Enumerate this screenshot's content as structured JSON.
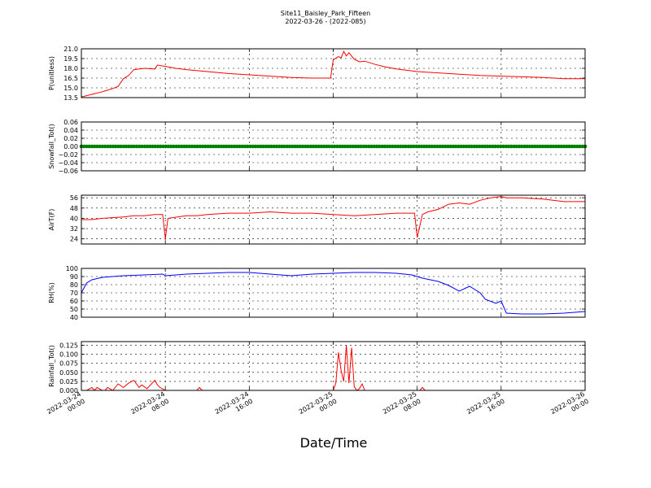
{
  "figure": {
    "title_line1": "Site11_Baisley_Park_Fifteen",
    "title_line2": "2022-03-26 - (2022-085)",
    "xlabel": "Date/Time"
  },
  "x_axis": {
    "range": [
      "2022-03-24 00:00",
      "2022-03-26 00:00"
    ],
    "ticks": [
      {
        "value": "2022-03-24 00:00",
        "line1": "2022-03-24",
        "line2": "00:00"
      },
      {
        "value": "2022-03-24 08:00",
        "line1": "2022-03-24",
        "line2": "08:00"
      },
      {
        "value": "2022-03-24 16:00",
        "line1": "2022-03-24",
        "line2": "16:00"
      },
      {
        "value": "2022-03-25 00:00",
        "line1": "2022-03-25",
        "line2": "00:00"
      },
      {
        "value": "2022-03-25 08:00",
        "line1": "2022-03-25",
        "line2": "08:00"
      },
      {
        "value": "2022-03-25 16:00",
        "line1": "2022-03-25",
        "line2": "16:00"
      },
      {
        "value": "2022-03-26 00:00",
        "line1": "2022-03-26",
        "line2": "00:00"
      }
    ]
  },
  "chart_data": [
    {
      "type": "line",
      "ylabel": "P(unitless)",
      "ylim": [
        13.5,
        21.0
      ],
      "yticks": [
        "13.5",
        "15.0",
        "16.5",
        "18.0",
        "19.5",
        "21.0"
      ],
      "grid": true,
      "color": "#ff0000",
      "x": [
        "2022-03-24 00:00",
        "2022-03-24 01:00",
        "2022-03-24 02:00",
        "2022-03-24 03:00",
        "2022-03-24 03:30",
        "2022-03-24 04:00",
        "2022-03-24 04:30",
        "2022-03-24 05:00",
        "2022-03-24 06:00",
        "2022-03-24 07:00",
        "2022-03-24 07:15",
        "2022-03-24 08:00",
        "2022-03-24 09:00",
        "2022-03-24 10:00",
        "2022-03-24 12:00",
        "2022-03-24 14:00",
        "2022-03-24 16:00",
        "2022-03-24 18:00",
        "2022-03-24 20:00",
        "2022-03-24 22:00",
        "2022-03-24 23:45",
        "2022-03-25 00:00",
        "2022-03-25 00:30",
        "2022-03-25 00:45",
        "2022-03-25 01:00",
        "2022-03-25 01:15",
        "2022-03-25 01:30",
        "2022-03-25 02:00",
        "2022-03-25 02:30",
        "2022-03-25 03:00",
        "2022-03-25 04:00",
        "2022-03-25 05:00",
        "2022-03-25 06:00",
        "2022-03-25 08:00",
        "2022-03-25 10:00",
        "2022-03-25 12:00",
        "2022-03-25 14:00",
        "2022-03-25 16:00",
        "2022-03-25 18:00",
        "2022-03-25 20:00",
        "2022-03-25 22:00",
        "2022-03-26 00:00"
      ],
      "y": [
        13.6,
        14.0,
        14.4,
        14.9,
        15.2,
        16.4,
        16.9,
        17.8,
        18.0,
        17.9,
        18.5,
        18.3,
        18.0,
        17.8,
        17.5,
        17.2,
        17.0,
        16.8,
        16.6,
        16.5,
        16.5,
        19.3,
        19.8,
        19.6,
        20.6,
        19.9,
        20.4,
        19.4,
        19.0,
        19.1,
        18.6,
        18.2,
        17.9,
        17.5,
        17.3,
        17.1,
        16.9,
        16.8,
        16.7,
        16.6,
        16.4,
        16.4
      ]
    },
    {
      "type": "scatter",
      "ylabel": "Snowfall_Tot()",
      "ylim": [
        -0.06,
        0.06
      ],
      "yticks": [
        "−0.06",
        "−0.04",
        "−0.02",
        "0.00",
        "0.02",
        "0.04",
        "0.06"
      ],
      "grid": true,
      "color": "#008000",
      "constant_value": 0.0,
      "point_count": 192
    },
    {
      "type": "line",
      "ylabel": "AirT(F)",
      "ylim": [
        20,
        58
      ],
      "yticks": [
        "24",
        "32",
        "40",
        "48",
        "56"
      ],
      "grid": true,
      "color": "#ff0000",
      "x": [
        "2022-03-24 00:00",
        "2022-03-24 01:00",
        "2022-03-24 02:00",
        "2022-03-24 04:00",
        "2022-03-24 05:00",
        "2022-03-24 06:00",
        "2022-03-24 07:00",
        "2022-03-24 07:45",
        "2022-03-24 08:00",
        "2022-03-24 08:15",
        "2022-03-24 10:00",
        "2022-03-24 11:00",
        "2022-03-24 12:00",
        "2022-03-24 14:00",
        "2022-03-24 16:00",
        "2022-03-24 18:00",
        "2022-03-24 20:00",
        "2022-03-24 22:00",
        "2022-03-25 00:00",
        "2022-03-25 02:00",
        "2022-03-25 04:00",
        "2022-03-25 06:00",
        "2022-03-25 07:45",
        "2022-03-25 08:00",
        "2022-03-25 08:30",
        "2022-03-25 09:00",
        "2022-03-25 10:00",
        "2022-03-25 11:00",
        "2022-03-25 12:00",
        "2022-03-25 13:00",
        "2022-03-25 14:00",
        "2022-03-25 15:00",
        "2022-03-25 16:00",
        "2022-03-25 16:30",
        "2022-03-25 18:00",
        "2022-03-25 20:00",
        "2022-03-25 22:00",
        "2022-03-26 00:00"
      ],
      "y": [
        39,
        39,
        40,
        41,
        42,
        42,
        43,
        43,
        24,
        40,
        42,
        42,
        43,
        44,
        44,
        45,
        44,
        44,
        43,
        42,
        43,
        44,
        44,
        25,
        43,
        45,
        47,
        51,
        52,
        51,
        54,
        56,
        57,
        56,
        56,
        55,
        53,
        53
      ]
    },
    {
      "type": "line",
      "ylabel": "RH(%)",
      "ylim": [
        40,
        100
      ],
      "yticks": [
        "40",
        "50",
        "60",
        "70",
        "80",
        "90",
        "100"
      ],
      "grid": true,
      "color": "#0000ff",
      "x": [
        "2022-03-24 00:00",
        "2022-03-24 00:30",
        "2022-03-24 01:00",
        "2022-03-24 02:00",
        "2022-03-24 04:00",
        "2022-03-24 06:00",
        "2022-03-24 07:45",
        "2022-03-24 08:00",
        "2022-03-24 10:00",
        "2022-03-24 12:00",
        "2022-03-24 14:00",
        "2022-03-24 16:00",
        "2022-03-24 18:00",
        "2022-03-24 20:00",
        "2022-03-24 22:00",
        "2022-03-25 00:00",
        "2022-03-25 02:00",
        "2022-03-25 04:00",
        "2022-03-25 06:00",
        "2022-03-25 07:30",
        "2022-03-25 08:30",
        "2022-03-25 10:00",
        "2022-03-25 11:00",
        "2022-03-25 12:00",
        "2022-03-25 13:00",
        "2022-03-25 14:00",
        "2022-03-25 14:30",
        "2022-03-25 15:30",
        "2022-03-25 16:00",
        "2022-03-25 16:30",
        "2022-03-25 18:00",
        "2022-03-25 20:00",
        "2022-03-25 22:00",
        "2022-03-26 00:00"
      ],
      "y": [
        70,
        82,
        86,
        89,
        91,
        92,
        93,
        91,
        93,
        94,
        95,
        95,
        93,
        91,
        93,
        94,
        95,
        95,
        94,
        92,
        88,
        84,
        79,
        72,
        78,
        70,
        62,
        57,
        60,
        45,
        44,
        44,
        45,
        47
      ]
    },
    {
      "type": "line",
      "ylabel": "Rainfall_Tot()",
      "ylim": [
        0.0,
        0.135
      ],
      "yticks": [
        "0.000",
        "0.025",
        "0.050",
        "0.075",
        "0.100",
        "0.125"
      ],
      "grid": true,
      "color": "#ff0000",
      "x": [
        "2022-03-24 00:00",
        "2022-03-24 00:30",
        "2022-03-24 01:00",
        "2022-03-24 01:15",
        "2022-03-24 01:30",
        "2022-03-24 02:00",
        "2022-03-24 02:15",
        "2022-03-24 02:30",
        "2022-03-24 03:00",
        "2022-03-24 03:30",
        "2022-03-24 04:00",
        "2022-03-24 04:30",
        "2022-03-24 05:00",
        "2022-03-24 05:30",
        "2022-03-24 05:45",
        "2022-03-24 06:15",
        "2022-03-24 07:00",
        "2022-03-24 07:15",
        "2022-03-24 07:30",
        "2022-03-24 08:00",
        "2022-03-24 08:15",
        "2022-03-24 11:00",
        "2022-03-24 11:15",
        "2022-03-24 11:30",
        "2022-03-25 00:00",
        "2022-03-25 00:15",
        "2022-03-25 00:30",
        "2022-03-25 00:45",
        "2022-03-25 01:00",
        "2022-03-25 01:15",
        "2022-03-25 01:30",
        "2022-03-25 01:45",
        "2022-03-25 02:00",
        "2022-03-25 02:15",
        "2022-03-25 02:30",
        "2022-03-25 02:45",
        "2022-03-25 03:00",
        "2022-03-25 08:15",
        "2022-03-25 08:30",
        "2022-03-25 08:45",
        "2022-03-26 00:00"
      ],
      "y": [
        0,
        0,
        0.008,
        0,
        0.008,
        0,
        0,
        0.008,
        0,
        0.018,
        0.008,
        0.02,
        0.028,
        0.008,
        0.015,
        0.005,
        0.028,
        0.015,
        0.008,
        0,
        0,
        0,
        0.008,
        0,
        0,
        0.02,
        0.105,
        0.055,
        0.025,
        0.125,
        0.02,
        0.118,
        0.01,
        0,
        0.005,
        0.018,
        0,
        0,
        0.008,
        0,
        0
      ]
    }
  ]
}
